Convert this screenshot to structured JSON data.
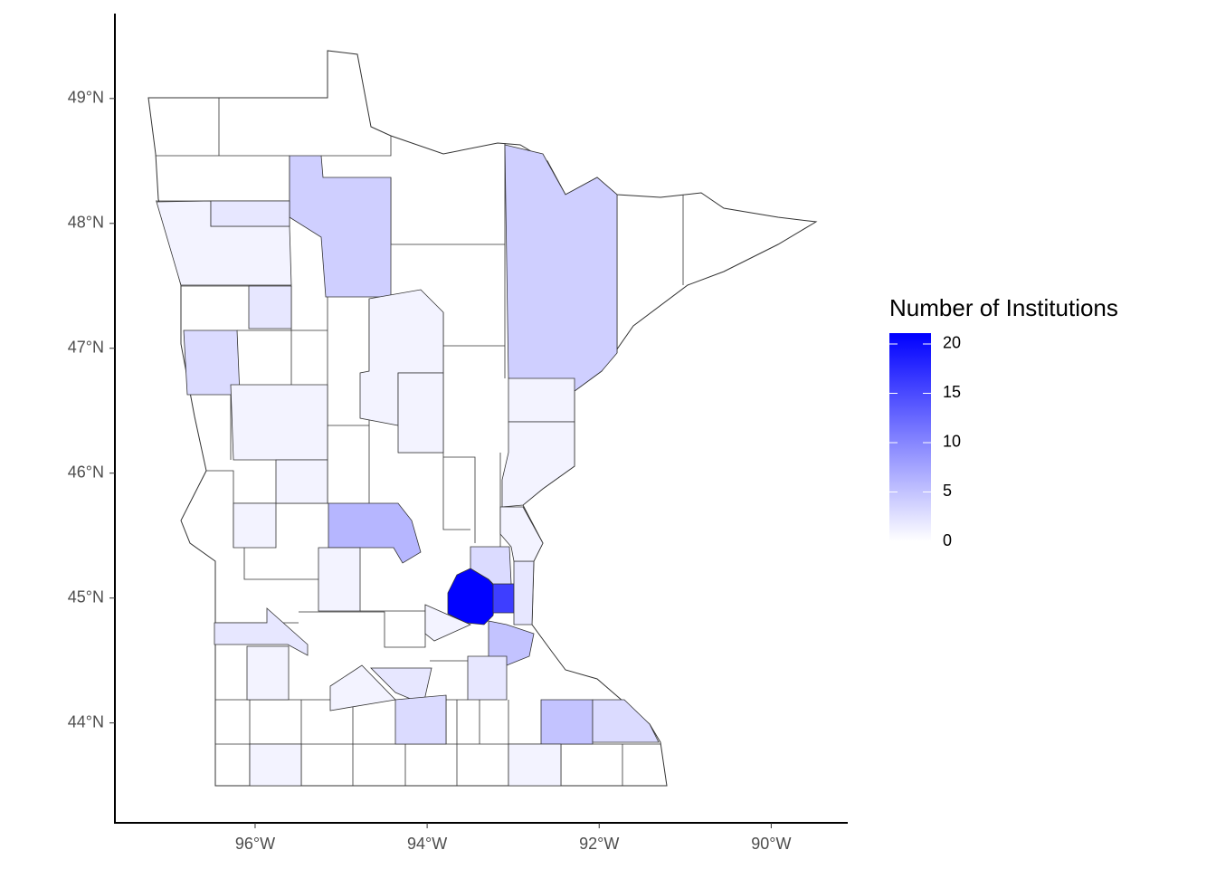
{
  "chart_data": {
    "type": "choropleth",
    "legend_title": "Number of Institutions",
    "values": [
      21,
      16,
      4,
      4,
      6,
      5,
      5,
      3,
      3,
      3,
      2,
      1,
      2,
      1,
      1,
      1,
      2,
      1,
      1,
      1,
      1,
      1,
      1,
      2,
      1,
      1,
      2,
      1,
      2,
      3,
      1,
      1
    ],
    "color_low": "#ffffff",
    "color_high": "#0000ff",
    "clim": [
      0,
      21.1
    ],
    "legend_ticks": [
      0,
      5,
      10,
      15,
      20
    ],
    "xlim": [
      -97.63,
      -89.11
    ],
    "ylim": [
      43.2,
      49.68
    ],
    "xticks": [
      {
        "value": -96,
        "label": "96°W"
      },
      {
        "value": -94,
        "label": "94°W"
      },
      {
        "value": -92,
        "label": "92°W"
      },
      {
        "value": -90,
        "label": "90°W"
      }
    ],
    "yticks": [
      {
        "value": 44,
        "label": "44°N"
      },
      {
        "value": 45,
        "label": "45°N"
      },
      {
        "value": 46,
        "label": "46°N"
      },
      {
        "value": 47,
        "label": "47°N"
      },
      {
        "value": 48,
        "label": "48°N"
      },
      {
        "value": 49,
        "label": "49°N"
      }
    ]
  }
}
